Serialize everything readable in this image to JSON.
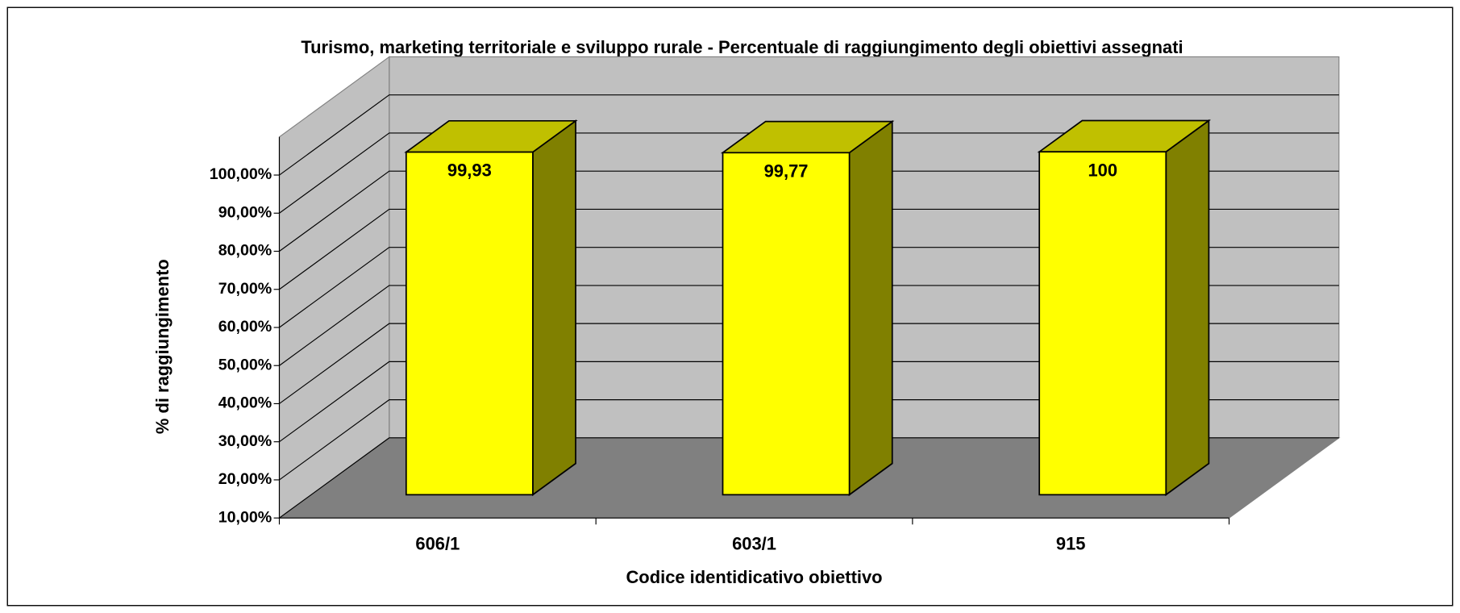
{
  "chart_data": {
    "type": "bar3d",
    "title": "Turismo, marketing territoriale e sviluppo rurale - Percentuale di raggiungimento degli obiettivi assegnati",
    "xlabel": "Codice identidicativo obiettivo",
    "ylabel": "% di raggiungimento",
    "categories": [
      "606/1",
      "603/1",
      "915"
    ],
    "values": [
      99.93,
      99.77,
      100
    ],
    "value_labels": [
      "99,93",
      "99,77",
      "100"
    ],
    "color": "#ffff00",
    "ylim": [
      10,
      110
    ],
    "yticks": [
      {
        "value": 10,
        "label": "10,00%"
      },
      {
        "value": 20,
        "label": "20,00%"
      },
      {
        "value": 30,
        "label": "30,00%"
      },
      {
        "value": 40,
        "label": "40,00%"
      },
      {
        "value": 50,
        "label": "50,00%"
      },
      {
        "value": 60,
        "label": "60,00%"
      },
      {
        "value": 70,
        "label": "70,00%"
      },
      {
        "value": 80,
        "label": "80,00%"
      },
      {
        "value": 90,
        "label": "90,00%"
      },
      {
        "value": 100,
        "label": "100,00%"
      }
    ],
    "grid": true
  }
}
